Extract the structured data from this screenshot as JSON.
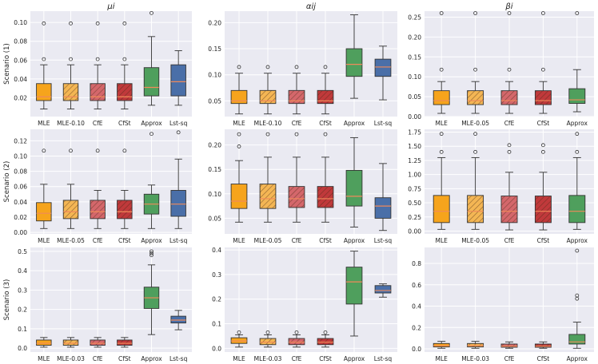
{
  "colors": {
    "MLE": "#f6a41c",
    "MLE_reg": "#f4b654",
    "CfE": "#d4676b",
    "CfSt": "#c0393b",
    "Approx": "#4f9f5d",
    "Lst-sq": "#4a6fa8",
    "panel_bg": "#eaeaf2",
    "grid": "#ffffff",
    "median": "#f08a5a"
  },
  "row_labels": [
    "Scenario (1)",
    "Scenario (2)",
    "Scenario (3)"
  ],
  "col_titles": [
    "μi",
    "αij",
    "βi"
  ],
  "chart_data": [
    {
      "type": "box",
      "row": 0,
      "col": 0,
      "title": "μi",
      "ylabel": "Scenario (1)",
      "ylim": [
        0.0,
        0.112
      ],
      "yticks": [
        0.02,
        0.04,
        0.06,
        0.08,
        0.1
      ],
      "tick_labels": [
        "0.02",
        "0.04",
        "0.06",
        "0.08",
        "0.10"
      ],
      "boxes": [
        {
          "label": "MLE",
          "style": "MLE",
          "hatch": false,
          "whislo": 0.008,
          "q1": 0.017,
          "med": 0.021,
          "q3": 0.035,
          "whishi": 0.055,
          "fliers": [
            0.061,
            0.099
          ]
        },
        {
          "label": "MLE-0.10",
          "style": "MLE_reg",
          "hatch": true,
          "whislo": 0.008,
          "q1": 0.017,
          "med": 0.021,
          "q3": 0.035,
          "whishi": 0.055,
          "fliers": [
            0.061,
            0.099
          ]
        },
        {
          "label": "CfE",
          "style": "CfE",
          "hatch": true,
          "whislo": 0.008,
          "q1": 0.017,
          "med": 0.021,
          "q3": 0.035,
          "whishi": 0.055,
          "fliers": [
            0.061,
            0.099
          ]
        },
        {
          "label": "CfSt",
          "style": "CfSt",
          "hatch": true,
          "whislo": 0.008,
          "q1": 0.017,
          "med": 0.021,
          "q3": 0.035,
          "whishi": 0.055,
          "fliers": [
            0.061,
            0.099
          ]
        },
        {
          "label": "Approx",
          "style": "Approx",
          "hatch": false,
          "whislo": 0.012,
          "q1": 0.022,
          "med": 0.031,
          "q3": 0.052,
          "whishi": 0.085,
          "fliers": [
            0.11
          ]
        },
        {
          "label": "Lst-sq",
          "style": "Lst-sq",
          "hatch": false,
          "whislo": 0.012,
          "q1": 0.022,
          "med": 0.037,
          "q3": 0.055,
          "whishi": 0.07,
          "fliers": []
        }
      ]
    },
    {
      "type": "box",
      "row": 0,
      "col": 1,
      "title": "αij",
      "ylabel": "",
      "ylim": [
        0.02,
        0.222
      ],
      "yticks": [
        0.05,
        0.1,
        0.15,
        0.2
      ],
      "tick_labels": [
        "0.05",
        "0.10",
        "0.15",
        "0.20"
      ],
      "boxes": [
        {
          "label": "MLE",
          "style": "MLE",
          "hatch": false,
          "whislo": 0.025,
          "q1": 0.045,
          "med": 0.05,
          "q3": 0.07,
          "whishi": 0.103,
          "fliers": [
            0.115
          ]
        },
        {
          "label": "MLE-0.10",
          "style": "MLE_reg",
          "hatch": true,
          "whislo": 0.025,
          "q1": 0.045,
          "med": 0.05,
          "q3": 0.07,
          "whishi": 0.103,
          "fliers": [
            0.115
          ]
        },
        {
          "label": "CfE",
          "style": "CfE",
          "hatch": true,
          "whislo": 0.025,
          "q1": 0.045,
          "med": 0.05,
          "q3": 0.07,
          "whishi": 0.103,
          "fliers": [
            0.115
          ]
        },
        {
          "label": "CfSt",
          "style": "CfSt",
          "hatch": true,
          "whislo": 0.025,
          "q1": 0.045,
          "med": 0.05,
          "q3": 0.07,
          "whishi": 0.103,
          "fliers": [
            0.115
          ]
        },
        {
          "label": "Approx",
          "style": "Approx",
          "hatch": false,
          "whislo": 0.055,
          "q1": 0.097,
          "med": 0.12,
          "q3": 0.15,
          "whishi": 0.215,
          "fliers": []
        },
        {
          "label": "Lst-sq",
          "style": "Lst-sq",
          "hatch": false,
          "whislo": 0.052,
          "q1": 0.097,
          "med": 0.115,
          "q3": 0.13,
          "whishi": 0.155,
          "fliers": []
        }
      ]
    },
    {
      "type": "box",
      "row": 0,
      "col": 2,
      "title": "βi",
      "ylabel": "",
      "ylim": [
        0.0,
        0.265
      ],
      "yticks": [
        0.0,
        0.05,
        0.1,
        0.15,
        0.2,
        0.25
      ],
      "tick_labels": [
        "0.00",
        "0.05",
        "0.10",
        "0.15",
        "0.20",
        "0.25"
      ],
      "boxes": [
        {
          "label": "MLE",
          "style": "MLE",
          "hatch": false,
          "whislo": 0.008,
          "q1": 0.03,
          "med": 0.04,
          "q3": 0.065,
          "whishi": 0.088,
          "fliers": [
            0.118,
            0.26
          ]
        },
        {
          "label": "MLE-0.05",
          "style": "MLE_reg",
          "hatch": true,
          "whislo": 0.008,
          "q1": 0.03,
          "med": 0.04,
          "q3": 0.065,
          "whishi": 0.088,
          "fliers": [
            0.118,
            0.26
          ]
        },
        {
          "label": "CfE",
          "style": "CfE",
          "hatch": true,
          "whislo": 0.008,
          "q1": 0.03,
          "med": 0.04,
          "q3": 0.065,
          "whishi": 0.088,
          "fliers": [
            0.118,
            0.26
          ]
        },
        {
          "label": "CfSt",
          "style": "CfSt",
          "hatch": true,
          "whislo": 0.008,
          "q1": 0.03,
          "med": 0.04,
          "q3": 0.065,
          "whishi": 0.088,
          "fliers": [
            0.118,
            0.26
          ]
        },
        {
          "label": "Approx",
          "style": "Approx",
          "hatch": false,
          "whislo": 0.012,
          "q1": 0.033,
          "med": 0.042,
          "q3": 0.07,
          "whishi": 0.118,
          "fliers": [
            0.26
          ]
        }
      ]
    },
    {
      "type": "box",
      "row": 1,
      "col": 0,
      "title": "",
      "ylabel": "Scenario (2)",
      "ylim": [
        -0.002,
        0.135
      ],
      "yticks": [
        0.0,
        0.02,
        0.04,
        0.06,
        0.08,
        0.1,
        0.12
      ],
      "tick_labels": [
        "0.00",
        "0.02",
        "0.04",
        "0.06",
        "0.08",
        "0.10",
        "0.12"
      ],
      "boxes": [
        {
          "label": "MLE",
          "style": "MLE",
          "hatch": false,
          "whislo": 0.005,
          "q1": 0.015,
          "med": 0.025,
          "q3": 0.039,
          "whishi": 0.063,
          "fliers": [
            0.107
          ]
        },
        {
          "label": "MLE-0.05",
          "style": "MLE_reg",
          "hatch": true,
          "whislo": 0.005,
          "q1": 0.018,
          "med": 0.027,
          "q3": 0.042,
          "whishi": 0.063,
          "fliers": [
            0.107
          ]
        },
        {
          "label": "CfE",
          "style": "CfE",
          "hatch": true,
          "whislo": 0.005,
          "q1": 0.018,
          "med": 0.027,
          "q3": 0.042,
          "whishi": 0.055,
          "fliers": [
            0.107
          ]
        },
        {
          "label": "CfSt",
          "style": "CfSt",
          "hatch": true,
          "whislo": 0.005,
          "q1": 0.018,
          "med": 0.027,
          "q3": 0.042,
          "whishi": 0.055,
          "fliers": [
            0.107
          ]
        },
        {
          "label": "Approx",
          "style": "Approx",
          "hatch": false,
          "whislo": 0.005,
          "q1": 0.024,
          "med": 0.037,
          "q3": 0.05,
          "whishi": 0.062,
          "fliers": [
            0.129
          ]
        },
        {
          "label": "Lst-sq",
          "style": "Lst-sq",
          "hatch": false,
          "whislo": 0.005,
          "q1": 0.021,
          "med": 0.037,
          "q3": 0.055,
          "whishi": 0.096,
          "fliers": [
            0.131
          ]
        }
      ]
    },
    {
      "type": "box",
      "row": 1,
      "col": 1,
      "title": "",
      "ylabel": "",
      "ylim": [
        0.018,
        0.232
      ],
      "yticks": [
        0.05,
        0.1,
        0.15,
        0.2
      ],
      "tick_labels": [
        "0.05",
        "0.10",
        "0.15",
        "0.20"
      ],
      "boxes": [
        {
          "label": "MLE",
          "style": "MLE",
          "hatch": false,
          "whislo": 0.042,
          "q1": 0.07,
          "med": 0.085,
          "q3": 0.12,
          "whishi": 0.168,
          "fliers": [
            0.197,
            0.222
          ]
        },
        {
          "label": "MLE-0.05",
          "style": "MLE_reg",
          "hatch": true,
          "whislo": 0.042,
          "q1": 0.07,
          "med": 0.09,
          "q3": 0.12,
          "whishi": 0.175,
          "fliers": [
            0.222
          ]
        },
        {
          "label": "CfE",
          "style": "CfE",
          "hatch": true,
          "whislo": 0.042,
          "q1": 0.072,
          "med": 0.09,
          "q3": 0.115,
          "whishi": 0.175,
          "fliers": [
            0.222
          ]
        },
        {
          "label": "CfSt",
          "style": "CfSt",
          "hatch": true,
          "whislo": 0.042,
          "q1": 0.072,
          "med": 0.09,
          "q3": 0.115,
          "whishi": 0.175,
          "fliers": [
            0.222
          ]
        },
        {
          "label": "Approx",
          "style": "Approx",
          "hatch": false,
          "whislo": 0.032,
          "q1": 0.075,
          "med": 0.095,
          "q3": 0.148,
          "whishi": 0.215,
          "fliers": []
        },
        {
          "label": "Lst-sq",
          "style": "Lst-sq",
          "hatch": false,
          "whislo": 0.025,
          "q1": 0.05,
          "med": 0.075,
          "q3": 0.092,
          "whishi": 0.162,
          "fliers": []
        }
      ]
    },
    {
      "type": "box",
      "row": 1,
      "col": 2,
      "title": "",
      "ylabel": "",
      "ylim": [
        -0.05,
        1.8
      ],
      "yticks": [
        0.0,
        0.25,
        0.5,
        0.75,
        1.0,
        1.25,
        1.5,
        1.75
      ],
      "tick_labels": [
        "0.00",
        "0.25",
        "0.50",
        "0.75",
        "1.00",
        "1.25",
        "1.50",
        "1.75"
      ],
      "boxes": [
        {
          "label": "MLE",
          "style": "MLE",
          "hatch": false,
          "whislo": 0.03,
          "q1": 0.15,
          "med": 0.35,
          "q3": 0.63,
          "whishi": 1.3,
          "fliers": [
            1.4,
            1.72
          ]
        },
        {
          "label": "MLE-0.05",
          "style": "MLE_reg",
          "hatch": true,
          "whislo": 0.03,
          "q1": 0.15,
          "med": 0.35,
          "q3": 0.63,
          "whishi": 1.3,
          "fliers": [
            1.4,
            1.72
          ]
        },
        {
          "label": "CfE",
          "style": "CfE",
          "hatch": true,
          "whislo": 0.02,
          "q1": 0.15,
          "med": 0.35,
          "q3": 0.62,
          "whishi": 1.04,
          "fliers": [
            1.4,
            1.52
          ]
        },
        {
          "label": "CfSt",
          "style": "CfSt",
          "hatch": true,
          "whislo": 0.02,
          "q1": 0.15,
          "med": 0.35,
          "q3": 0.62,
          "whishi": 1.04,
          "fliers": [
            1.4,
            1.52
          ]
        },
        {
          "label": "Approx",
          "style": "Approx",
          "hatch": false,
          "whislo": 0.03,
          "q1": 0.15,
          "med": 0.35,
          "q3": 0.63,
          "whishi": 1.3,
          "fliers": [
            1.4,
            1.72
          ]
        }
      ]
    },
    {
      "type": "box",
      "row": 2,
      "col": 0,
      "title": "",
      "ylabel": "Scenario (3)",
      "ylim": [
        -0.02,
        0.52
      ],
      "yticks": [
        0.0,
        0.1,
        0.2,
        0.3,
        0.4,
        0.5
      ],
      "tick_labels": [
        "0.0",
        "0.1",
        "0.2",
        "0.3",
        "0.4",
        "0.5"
      ],
      "boxes": [
        {
          "label": "MLE",
          "style": "MLE",
          "hatch": false,
          "whislo": 0.005,
          "q1": 0.015,
          "med": 0.025,
          "q3": 0.042,
          "whishi": 0.055,
          "fliers": []
        },
        {
          "label": "MLE-0.03",
          "style": "MLE_reg",
          "hatch": true,
          "whislo": 0.005,
          "q1": 0.015,
          "med": 0.025,
          "q3": 0.042,
          "whishi": 0.055,
          "fliers": []
        },
        {
          "label": "CfE",
          "style": "CfE",
          "hatch": true,
          "whislo": 0.005,
          "q1": 0.015,
          "med": 0.025,
          "q3": 0.042,
          "whishi": 0.055,
          "fliers": []
        },
        {
          "label": "CfSt",
          "style": "CfSt",
          "hatch": true,
          "whislo": 0.005,
          "q1": 0.015,
          "med": 0.025,
          "q3": 0.042,
          "whishi": 0.055,
          "fliers": []
        },
        {
          "label": "Approx",
          "style": "Approx",
          "hatch": false,
          "whislo": 0.07,
          "q1": 0.205,
          "med": 0.26,
          "q3": 0.315,
          "whishi": 0.43,
          "fliers": [
            0.48,
            0.49,
            0.5
          ]
        },
        {
          "label": "Lst-sq",
          "style": "Lst-sq",
          "hatch": false,
          "whislo": 0.095,
          "q1": 0.13,
          "med": 0.145,
          "q3": 0.165,
          "whishi": 0.195,
          "fliers": []
        }
      ]
    },
    {
      "type": "box",
      "row": 2,
      "col": 1,
      "title": "",
      "ylabel": "",
      "ylim": [
        -0.015,
        0.41
      ],
      "yticks": [
        0.0,
        0.1,
        0.2,
        0.3,
        0.4
      ],
      "tick_labels": [
        "0.0",
        "0.1",
        "0.2",
        "0.3",
        "0.4"
      ],
      "boxes": [
        {
          "label": "MLE",
          "style": "MLE",
          "hatch": false,
          "whislo": 0.005,
          "q1": 0.02,
          "med": 0.03,
          "q3": 0.043,
          "whishi": 0.055,
          "fliers": [
            0.065
          ]
        },
        {
          "label": "MLE-0.03",
          "style": "MLE_reg",
          "hatch": true,
          "whislo": 0.005,
          "q1": 0.015,
          "med": 0.025,
          "q3": 0.04,
          "whishi": 0.055,
          "fliers": [
            0.065
          ]
        },
        {
          "label": "CfE",
          "style": "CfE",
          "hatch": true,
          "whislo": 0.005,
          "q1": 0.015,
          "med": 0.025,
          "q3": 0.04,
          "whishi": 0.055,
          "fliers": [
            0.065
          ]
        },
        {
          "label": "CfSt",
          "style": "CfSt",
          "hatch": true,
          "whislo": 0.005,
          "q1": 0.015,
          "med": 0.025,
          "q3": 0.04,
          "whishi": 0.055,
          "fliers": [
            0.065
          ]
        },
        {
          "label": "Approx",
          "style": "Approx",
          "hatch": false,
          "whislo": 0.05,
          "q1": 0.18,
          "med": 0.27,
          "q3": 0.33,
          "whishi": 0.395,
          "fliers": []
        },
        {
          "label": "Lst-sq",
          "style": "Lst-sq",
          "hatch": false,
          "whislo": 0.208,
          "q1": 0.225,
          "med": 0.235,
          "q3": 0.255,
          "whishi": 0.262,
          "fliers": []
        }
      ]
    },
    {
      "type": "box",
      "row": 2,
      "col": 2,
      "title": "",
      "ylabel": "",
      "ylim": [
        -0.03,
        0.95
      ],
      "yticks": [
        0.0,
        0.2,
        0.4,
        0.6,
        0.8
      ],
      "tick_labels": [
        "0.0",
        "0.2",
        "0.4",
        "0.6",
        "0.8"
      ],
      "boxes": [
        {
          "label": "MLE",
          "style": "MLE",
          "hatch": false,
          "whislo": 0.005,
          "q1": 0.018,
          "med": 0.03,
          "q3": 0.05,
          "whishi": 0.07,
          "fliers": []
        },
        {
          "label": "MLE-0.03",
          "style": "MLE_reg",
          "hatch": true,
          "whislo": 0.005,
          "q1": 0.018,
          "med": 0.03,
          "q3": 0.05,
          "whishi": 0.07,
          "fliers": []
        },
        {
          "label": "CfE",
          "style": "CfE",
          "hatch": true,
          "whislo": 0.005,
          "q1": 0.015,
          "med": 0.025,
          "q3": 0.045,
          "whishi": 0.065,
          "fliers": []
        },
        {
          "label": "CfSt",
          "style": "CfSt",
          "hatch": true,
          "whislo": 0.005,
          "q1": 0.015,
          "med": 0.025,
          "q3": 0.045,
          "whishi": 0.065,
          "fliers": []
        },
        {
          "label": "Approx",
          "style": "Approx",
          "hatch": false,
          "whislo": 0.005,
          "q1": 0.045,
          "med": 0.065,
          "q3": 0.135,
          "whishi": 0.25,
          "fliers": [
            0.47,
            0.5,
            0.92
          ]
        }
      ]
    }
  ]
}
